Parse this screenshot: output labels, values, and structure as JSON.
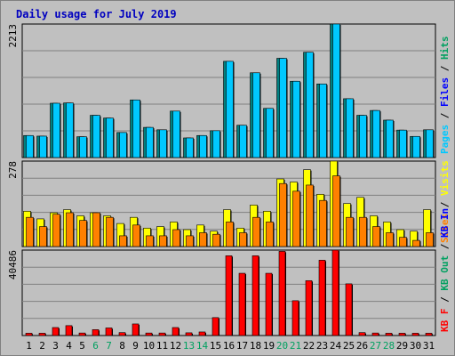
{
  "chart_data": {
    "type": "bar",
    "title": "Daily usage for July 2019",
    "categories": [
      "1",
      "2",
      "3",
      "4",
      "5",
      "6",
      "7",
      "8",
      "9",
      "10",
      "11",
      "12",
      "13",
      "14",
      "15",
      "16",
      "17",
      "18",
      "19",
      "20",
      "21",
      "22",
      "23",
      "24",
      "25",
      "26",
      "27",
      "28",
      "29",
      "30",
      "31"
    ],
    "weekend_days": [
      "6",
      "7",
      "13",
      "14",
      "20",
      "21",
      "27",
      "28"
    ],
    "grid": true,
    "panels": [
      {
        "id": "hits-files-pages",
        "max_label": "2213",
        "ylim": [
          0,
          2213
        ],
        "legend": [
          {
            "text": "Pages",
            "color": "#00c8ff"
          },
          {
            "text": "Files",
            "color": "#0000ff"
          },
          {
            "text": "Hits",
            "color": "#00a060"
          }
        ],
        "series": [
          {
            "name": "Hits",
            "color": "#008080",
            "values": [
              365,
              355,
              900,
              905,
              345,
              700,
              655,
              415,
              955,
              500,
              460,
              770,
              325,
              365,
              445,
              1595,
              535,
              1405,
              815,
              1645,
              1265,
              1745,
              1220,
              2213,
              975,
              700,
              780,
              620,
              455,
              350,
              460
            ]
          },
          {
            "name": "Files",
            "color": "#00c8ff",
            "values": [
              365,
              355,
              900,
              905,
              345,
              700,
              655,
              415,
              955,
              500,
              460,
              770,
              325,
              365,
              445,
              1595,
              535,
              1405,
              815,
              1645,
              1265,
              1745,
              1220,
              2213,
              975,
              700,
              780,
              620,
              455,
              350,
              460
            ]
          }
        ]
      },
      {
        "id": "visits-sites",
        "max_label": "278",
        "ylim": [
          0,
          278
        ],
        "legend": [
          {
            "text": "Sites",
            "color": "#ff8000"
          },
          {
            "text": "Visits",
            "color": "#ffff00"
          }
        ],
        "series": [
          {
            "name": "Visits",
            "color": "#ffff00",
            "values": [
              115,
              90,
              110,
              120,
              100,
              110,
              100,
              75,
              95,
              60,
              65,
              80,
              55,
              70,
              50,
              120,
              60,
              135,
              115,
              220,
              210,
              250,
              170,
              278,
              140,
              160,
              100,
              80,
              55,
              50,
              120
            ]
          },
          {
            "name": "Sites",
            "color": "#ff8000",
            "values": [
              95,
              65,
              105,
              110,
              85,
              110,
              95,
              35,
              70,
              35,
              35,
              55,
              35,
              45,
              40,
              80,
              45,
              95,
              80,
              205,
              180,
              200,
              150,
              230,
              95,
              95,
              65,
              45,
              30,
              20,
              45
            ]
          }
        ]
      },
      {
        "id": "kb",
        "max_label": "40486",
        "ylim": [
          0,
          40486
        ],
        "legend": [
          {
            "text": "KB F",
            "color": "#ff0000"
          },
          {
            "text": "KB Out",
            "color": "#00a060"
          },
          {
            "text": "KB In",
            "color": "#0000ff"
          }
        ],
        "series": [
          {
            "name": "KB F",
            "color": "#ff0000",
            "values": [
              1100,
              1100,
              3800,
              4700,
              1200,
              2800,
              3600,
              1400,
              5500,
              1200,
              1200,
              3800,
              1300,
              1700,
              8500,
              37800,
              29500,
              37800,
              29500,
              39900,
              16500,
              26000,
              35700,
              40486,
              24500,
              1400,
              1200,
              1100,
              1100,
              1100,
              1100
            ]
          }
        ]
      }
    ]
  }
}
